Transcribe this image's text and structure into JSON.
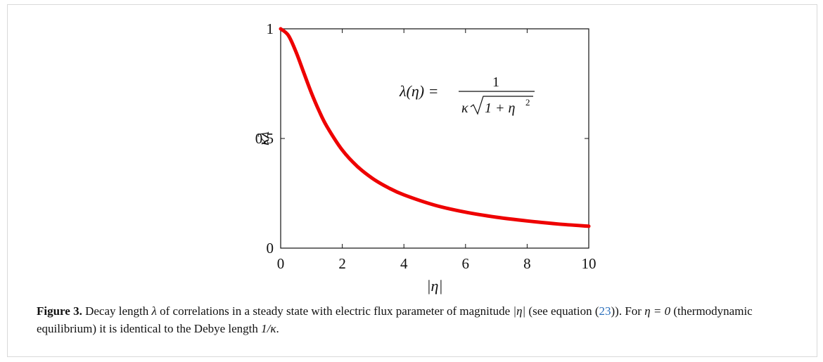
{
  "chart_data": {
    "type": "line",
    "xlabel": "|η|",
    "ylabel": "κλ",
    "xlim": [
      0,
      10
    ],
    "ylim": [
      0,
      1
    ],
    "x_ticks": [
      0,
      2,
      4,
      6,
      8,
      10
    ],
    "x_tick_labels": [
      "0",
      "2",
      "4",
      "6",
      "8",
      "10"
    ],
    "y_ticks": [
      0,
      0.5,
      1
    ],
    "y_tick_labels": [
      "0",
      "0.5",
      "1"
    ],
    "grid": false,
    "annotation": {
      "lhs": "λ(η) =",
      "numerator": "1",
      "denominator_prefix": "κ",
      "denominator_radicand": "1 + η",
      "denominator_exponent": "2"
    },
    "series": [
      {
        "color": "#ee0000",
        "x": [
          0,
          0.25,
          0.5,
          0.75,
          1,
          1.25,
          1.5,
          2,
          2.5,
          3,
          3.5,
          4,
          5,
          6,
          7,
          8,
          9,
          10
        ],
        "y": [
          1.0,
          0.97,
          0.894,
          0.8,
          0.707,
          0.625,
          0.555,
          0.447,
          0.371,
          0.316,
          0.275,
          0.243,
          0.196,
          0.164,
          0.141,
          0.124,
          0.11,
          0.1
        ]
      }
    ]
  },
  "caption": {
    "label": "Figure 3.",
    "text_part1": " Decay length ",
    "symbol_lambda": "λ",
    "text_part2": " of correlations in a steady state with electric flux parameter of magnitude ",
    "symbol_abs_eta": "|η|",
    "text_part3": " (see equation (",
    "equation_ref": "23",
    "text_part4": ")). For ",
    "symbol_eta_zero": "η = 0",
    "text_part5": " (thermodynamic equilibrium) it is identical to the Debye length ",
    "symbol_debye": "1/κ",
    "text_part6": "."
  }
}
